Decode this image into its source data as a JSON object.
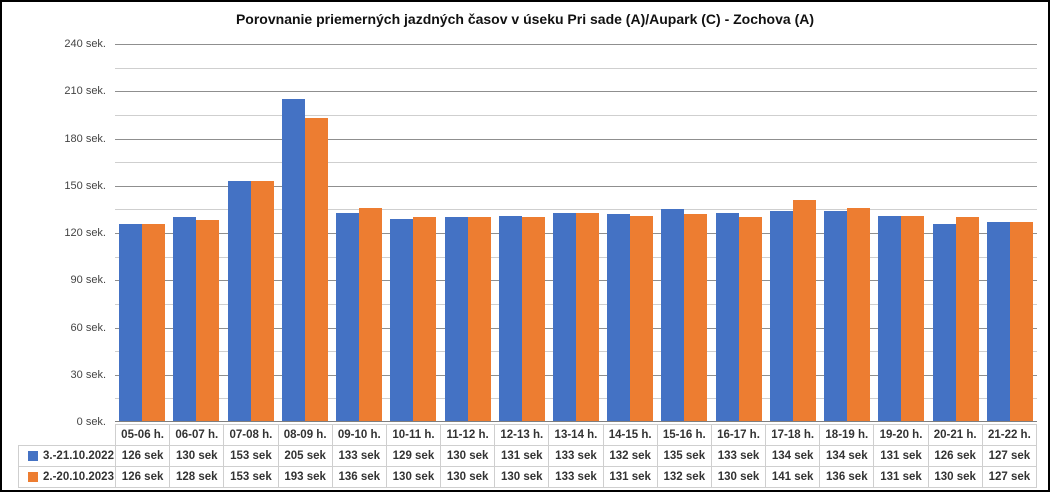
{
  "chart_data": {
    "type": "bar",
    "title": "Porovnanie priemerných jazdných časov v úseku Pri sade (A)/Aupark (C) - Zochova (A)",
    "categories": [
      "05-06 h.",
      "06-07 h.",
      "07-08 h.",
      "08-09 h.",
      "09-10 h.",
      "10-11 h.",
      "11-12 h.",
      "12-13 h.",
      "13-14 h.",
      "14-15 h.",
      "15-16 h.",
      "16-17 h.",
      "17-18 h.",
      "18-19 h.",
      "19-20 h.",
      "20-21 h.",
      "21-22 h."
    ],
    "series": [
      {
        "name": "3.-21.10.2022",
        "color": "#4472C4",
        "values": [
          126,
          130,
          153,
          205,
          133,
          129,
          130,
          131,
          133,
          132,
          135,
          133,
          134,
          134,
          131,
          126,
          127
        ]
      },
      {
        "name": "2.-20.10.2023",
        "color": "#ED7D31",
        "values": [
          126,
          128,
          153,
          193,
          136,
          130,
          130,
          130,
          133,
          131,
          132,
          130,
          141,
          136,
          131,
          130,
          127
        ]
      }
    ],
    "ylim": [
      0,
      240
    ],
    "ytick_step": 30,
    "minor_gridline_step": 15,
    "yticks": [
      "0 sek.",
      "30 sek.",
      "60 sek.",
      "90 sek.",
      "120 sek.",
      "150 sek.",
      "180 sek.",
      "210 sek.",
      "240 sek."
    ],
    "value_suffix": "sek",
    "grid": true,
    "legend_position": "data-table-left",
    "data_table_shown": true
  },
  "colors": {
    "bar_blue": "#4472C4",
    "bar_orange": "#ED7D31",
    "major_gridline": "#8f8f8f",
    "minor_gridline": "#cfcfcf",
    "axis_line": "#7f7f7f",
    "table_border": "#cfcfcf",
    "text": "#333333",
    "frame_border": "#000000"
  }
}
